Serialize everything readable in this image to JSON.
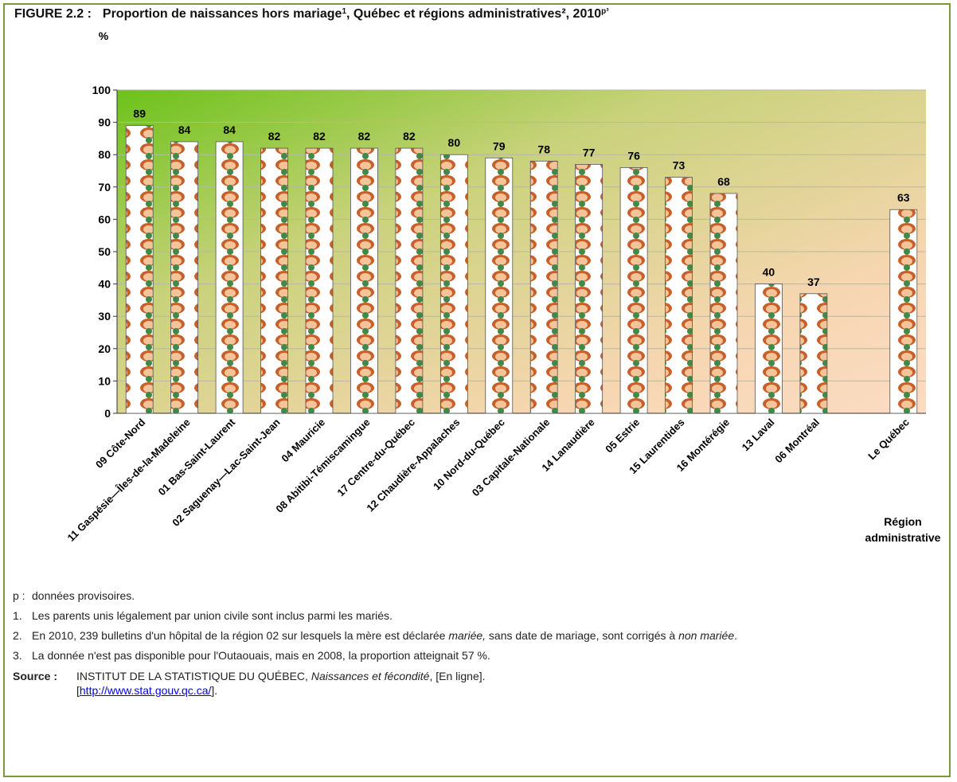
{
  "chart_data": {
    "type": "bar",
    "figure_label": "FIGURE 2.2 :",
    "title_parts": [
      {
        "text": "Proportion de naissances hors mariage"
      },
      {
        "text": "1",
        "sup": true
      },
      {
        "text": ", Québec et régions administratives², 2010"
      },
      {
        "text": "p³",
        "sup": true
      }
    ],
    "y_label": "%",
    "x_label": "Région administrative",
    "categories": [
      "09 Côte-Nord",
      "11 Gaspésie—Îles-de-la-Madeleine",
      "01 Bas-Saint-Laurent",
      "02 Saguenay—Lac-Saint-Jean",
      "04 Mauricie",
      "08 Abitibi-Témiscamingue",
      "17 Centre-du-Québec",
      "12 Chaudière-Appalaches",
      "10 Nord-du-Québec",
      "03 Capitale-Nationale",
      "14 Lanaudière",
      "05 Estrie",
      "15 Laurentides",
      "16 Montérégie",
      "13 Laval",
      "06 Montréal",
      null,
      "Le Québec"
    ],
    "values": [
      89,
      84,
      84,
      82,
      82,
      82,
      82,
      80,
      79,
      78,
      77,
      76,
      73,
      68,
      40,
      37,
      null,
      63
    ],
    "ylim": [
      0,
      100
    ],
    "yticks": [
      0,
      10,
      20,
      30,
      40,
      50,
      60,
      70,
      80,
      90,
      100
    ],
    "grid": true
  },
  "notes": [
    {
      "marker": "p :",
      "parts": [
        {
          "text": "données provisoires."
        }
      ]
    },
    {
      "marker": "1.",
      "parts": [
        {
          "text": "Les parents unis légalement par union civile sont inclus parmi les mariés."
        }
      ]
    },
    {
      "marker": "2.",
      "parts": [
        {
          "text": "En 2010, 239 bulletins d'un hôpital de la région 02 sur lesquels la mère est déclarée "
        },
        {
          "text": "mariée,",
          "italic": true
        },
        {
          "text": " sans date de mariage, sont corrigés à "
        },
        {
          "text": "non mariée",
          "italic": true
        },
        {
          "text": "."
        }
      ]
    },
    {
      "marker": "3.",
      "parts": [
        {
          "text": "La donnée n'est pas disponible pour l'Outaouais, mais en 2008, la proportion atteignait 57 %."
        }
      ]
    }
  ],
  "source": {
    "label": "Source :",
    "parts": [
      {
        "text": "INSTITUT DE LA STATISTIQUE DU QUÉBEC, "
      },
      {
        "text": "Naissances et fécondité",
        "italic": true
      },
      {
        "text": ", [En ligne]. ["
      },
      {
        "text": "http://www.stat.gouv.qc.ca/",
        "link": true
      },
      {
        "text": "]."
      }
    ]
  }
}
